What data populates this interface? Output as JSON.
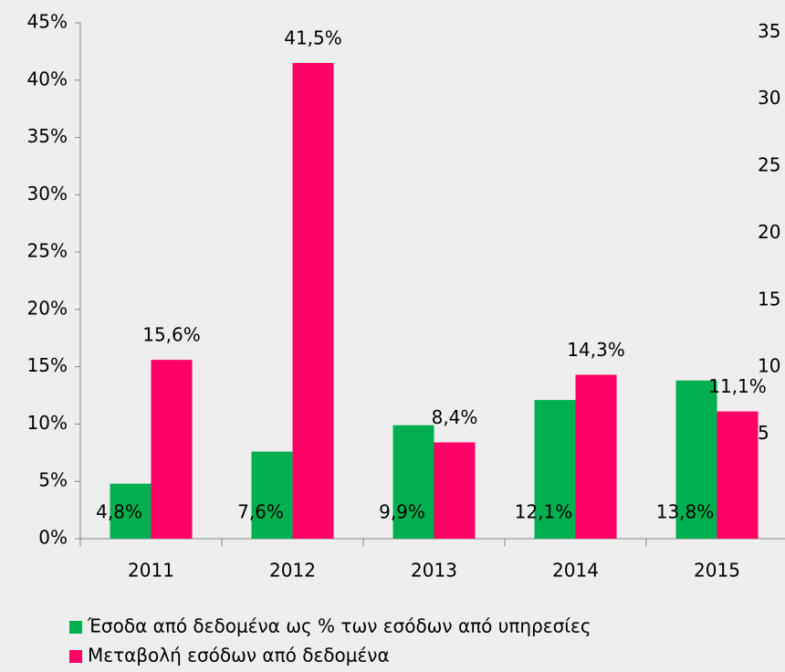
{
  "chart_data": {
    "type": "bar",
    "categories": [
      "2011",
      "2012",
      "2013",
      "2014",
      "2015"
    ],
    "series": [
      {
        "name": "Έσοδα από δεδομένα ως % των εσόδων από υπηρεσίες",
        "color": "#00b050",
        "values": [
          4.8,
          7.6,
          9.9,
          12.1,
          13.8
        ],
        "value_labels": [
          "4,8%",
          "7,6%",
          "9,9%",
          "12,1%",
          "13,8%"
        ]
      },
      {
        "name": "Μεταβολή εσόδων από δεδομένα",
        "color": "#ff0066",
        "values": [
          15.6,
          41.5,
          8.4,
          14.3,
          11.1
        ],
        "value_labels": [
          "15,6%",
          "41,5%",
          "8,4%",
          "14,3%",
          "11,1%"
        ]
      }
    ],
    "ylim": [
      0,
      45
    ],
    "yticks": [
      {
        "value": 0,
        "label": "0%"
      },
      {
        "value": 5,
        "label": "5%"
      },
      {
        "value": 10,
        "label": "10%"
      },
      {
        "value": 15,
        "label": "15%"
      },
      {
        "value": 20,
        "label": "20%"
      },
      {
        "value": 25,
        "label": "25%"
      },
      {
        "value": 30,
        "label": "30%"
      },
      {
        "value": 35,
        "label": "35%"
      },
      {
        "value": 40,
        "label": "40%"
      },
      {
        "value": 45,
        "label": "45%"
      }
    ],
    "y2lim": [
      -2.8,
      35.7
    ],
    "y2ticks": [
      5,
      10,
      15,
      20,
      25,
      30,
      35
    ],
    "legend": "bottom"
  }
}
